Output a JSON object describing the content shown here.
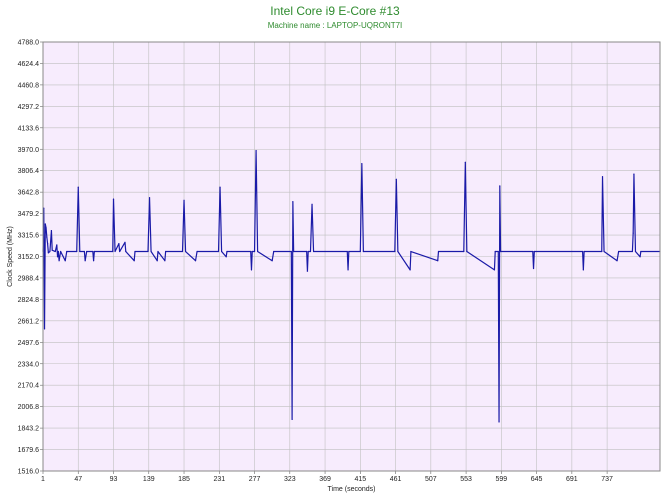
{
  "chart_data": {
    "type": "line",
    "title": "Intel Core i9 E-Core #13",
    "subtitle": "Machine name : LAPTOP-UQRONT7I",
    "xlabel": "Time (seconds)",
    "ylabel": "Clock Speed (MHz)",
    "xlim": [
      1,
      806
    ],
    "ylim": [
      1516.0,
      4788.0
    ],
    "x_ticks": [
      "1",
      "47",
      "93",
      "139",
      "185",
      "231",
      "277",
      "323",
      "369",
      "415",
      "461",
      "507",
      "553",
      "599",
      "645",
      "691",
      "737"
    ],
    "y_ticks": [
      "4788.0",
      "4624.4",
      "4460.8",
      "4297.2",
      "4133.6",
      "3970.0",
      "3806.4",
      "3642.8",
      "3479.2",
      "3315.6",
      "3152.0",
      "2988.4",
      "2824.8",
      "2661.2",
      "2497.6",
      "2334.0",
      "2170.4",
      "2006.8",
      "1843.2",
      "1679.6",
      "1516.0"
    ],
    "grid": true,
    "baseline": 3190,
    "series": [
      {
        "color": "#1a1aa8",
        "points": [
          [
            1,
            3190
          ],
          [
            2,
            3520
          ],
          [
            3,
            2600
          ],
          [
            4,
            3400
          ],
          [
            5,
            3370
          ],
          [
            6,
            3300
          ],
          [
            7,
            3250
          ],
          [
            8,
            3180
          ],
          [
            10,
            3190
          ],
          [
            12,
            3350
          ],
          [
            13,
            3200
          ],
          [
            17,
            3190
          ],
          [
            19,
            3240
          ],
          [
            20,
            3150
          ],
          [
            21,
            3190
          ],
          [
            22,
            3120
          ],
          [
            24,
            3190
          ],
          [
            30,
            3120
          ],
          [
            32,
            3190
          ],
          [
            45,
            3190
          ],
          [
            47,
            3680
          ],
          [
            49,
            3190
          ],
          [
            55,
            3190
          ],
          [
            56,
            3120
          ],
          [
            58,
            3190
          ],
          [
            66,
            3190
          ],
          [
            67,
            3120
          ],
          [
            68,
            3190
          ],
          [
            92,
            3190
          ],
          [
            93,
            3590
          ],
          [
            95,
            3190
          ],
          [
            100,
            3250
          ],
          [
            101,
            3190
          ],
          [
            108,
            3260
          ],
          [
            109,
            3190
          ],
          [
            120,
            3120
          ],
          [
            121,
            3190
          ],
          [
            138,
            3190
          ],
          [
            140,
            3600
          ],
          [
            142,
            3190
          ],
          [
            150,
            3120
          ],
          [
            151,
            3190
          ],
          [
            160,
            3120
          ],
          [
            161,
            3190
          ],
          [
            183,
            3190
          ],
          [
            185,
            3580
          ],
          [
            187,
            3190
          ],
          [
            200,
            3120
          ],
          [
            202,
            3190
          ],
          [
            230,
            3190
          ],
          [
            232,
            3680
          ],
          [
            234,
            3190
          ],
          [
            240,
            3150
          ],
          [
            241,
            3190
          ],
          [
            272,
            3190
          ],
          [
            273,
            3050
          ],
          [
            274,
            3190
          ],
          [
            277,
            3190
          ],
          [
            279,
            3960
          ],
          [
            281,
            3190
          ],
          [
            300,
            3120
          ],
          [
            302,
            3190
          ],
          [
            325,
            3190
          ],
          [
            326,
            1910
          ],
          [
            327,
            3570
          ],
          [
            328,
            3190
          ],
          [
            345,
            3190
          ],
          [
            346,
            3040
          ],
          [
            347,
            3190
          ],
          [
            350,
            3190
          ],
          [
            352,
            3550
          ],
          [
            354,
            3190
          ],
          [
            398,
            3190
          ],
          [
            399,
            3050
          ],
          [
            400,
            3190
          ],
          [
            415,
            3190
          ],
          [
            417,
            3860
          ],
          [
            419,
            3190
          ],
          [
            460,
            3190
          ],
          [
            462,
            3740
          ],
          [
            464,
            3190
          ],
          [
            480,
            3050
          ],
          [
            481,
            3190
          ],
          [
            516,
            3120
          ],
          [
            517,
            3190
          ],
          [
            550,
            3190
          ],
          [
            552,
            3870
          ],
          [
            554,
            3190
          ],
          [
            590,
            3050
          ],
          [
            591,
            3190
          ],
          [
            595,
            3190
          ],
          [
            596,
            1890
          ],
          [
            597,
            3690
          ],
          [
            598,
            3190
          ],
          [
            640,
            3190
          ],
          [
            641,
            3060
          ],
          [
            642,
            3190
          ],
          [
            705,
            3190
          ],
          [
            706,
            3050
          ],
          [
            707,
            3190
          ],
          [
            730,
            3190
          ],
          [
            731,
            3760
          ],
          [
            733,
            3190
          ],
          [
            750,
            3120
          ],
          [
            752,
            3190
          ],
          [
            770,
            3190
          ],
          [
            771,
            3330
          ],
          [
            772,
            3780
          ],
          [
            774,
            3190
          ],
          [
            780,
            3150
          ],
          [
            781,
            3190
          ],
          [
            806,
            3190
          ]
        ]
      }
    ]
  }
}
